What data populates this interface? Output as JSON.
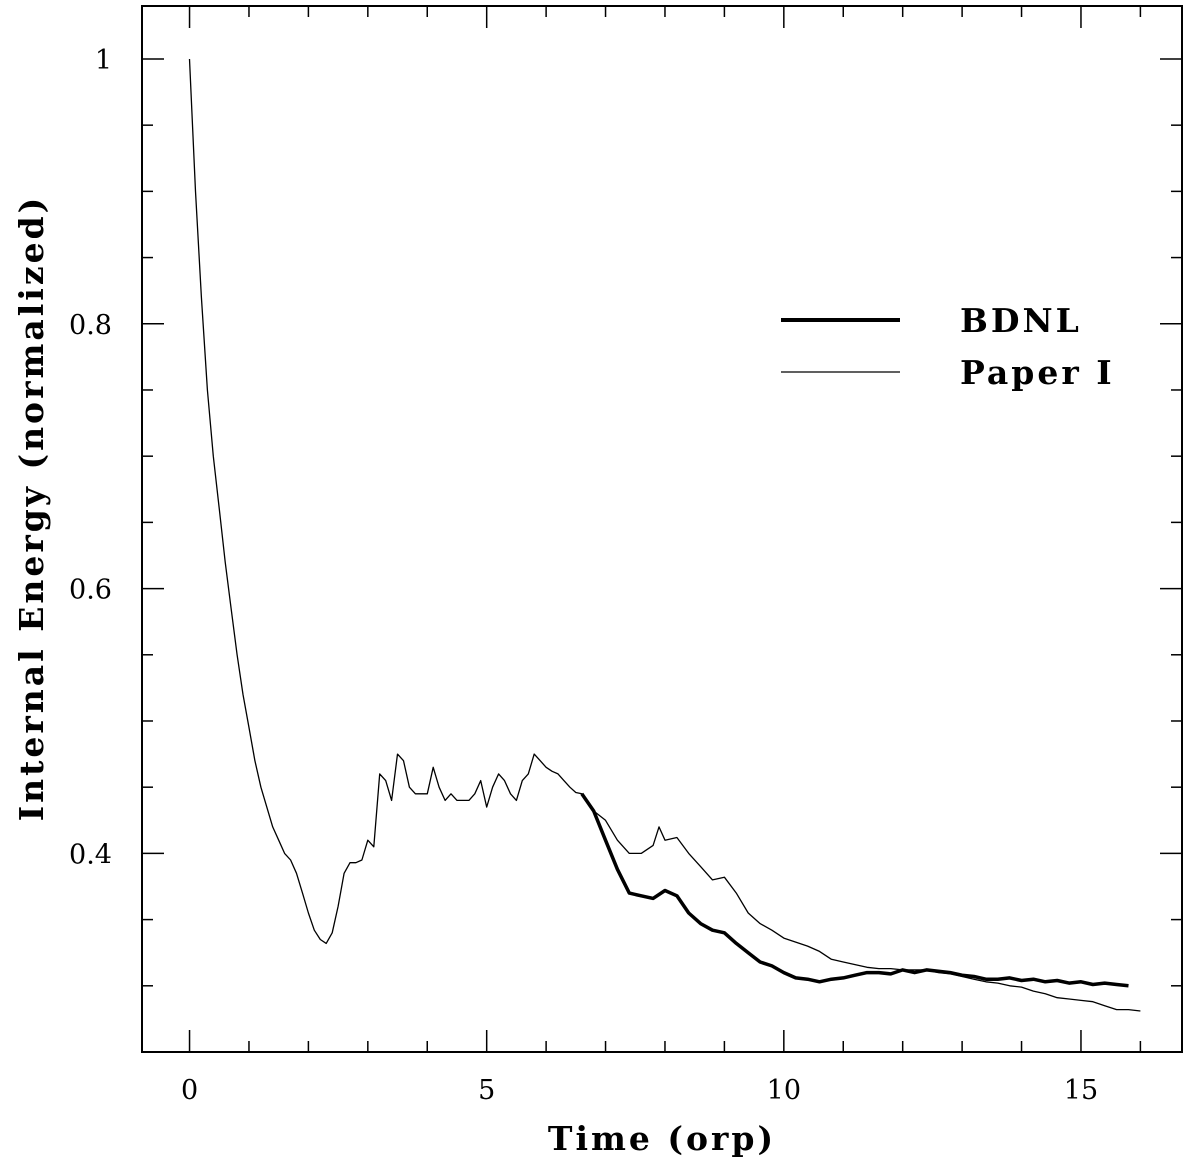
{
  "chart_data": {
    "type": "line",
    "title": "",
    "xlabel": "Time (orp)",
    "ylabel": "Internal Energy (normalized)",
    "xlim": [
      -0.8,
      16.7
    ],
    "ylim": [
      0.25,
      1.04
    ],
    "x_ticks": [
      0,
      5,
      10,
      15
    ],
    "x_tick_labels": [
      "0",
      "5",
      "10",
      "15"
    ],
    "y_ticks": [
      0.4,
      0.6,
      0.8,
      1.0
    ],
    "y_tick_labels": [
      "0.4",
      "0.6",
      "0.8",
      "1"
    ],
    "x_minor_step": 1,
    "y_minor_step": 0.05,
    "grid": false,
    "legend_position": "right",
    "series": [
      {
        "name": "BDNL",
        "style": "thick",
        "color": "#000000",
        "x": [
          6.6,
          6.8,
          7.0,
          7.2,
          7.4,
          7.6,
          7.8,
          8.0,
          8.2,
          8.4,
          8.6,
          8.8,
          9.0,
          9.2,
          9.4,
          9.6,
          9.8,
          10.0,
          10.2,
          10.4,
          10.6,
          10.8,
          11.0,
          11.2,
          11.4,
          11.6,
          11.8,
          12.0,
          12.2,
          12.4,
          12.6,
          12.8,
          13.0,
          13.2,
          13.4,
          13.6,
          13.8,
          14.0,
          14.2,
          14.4,
          14.6,
          14.8,
          15.0,
          15.2,
          15.4,
          15.6,
          15.8
        ],
        "y": [
          0.445,
          0.432,
          0.41,
          0.388,
          0.37,
          0.368,
          0.366,
          0.372,
          0.368,
          0.355,
          0.347,
          0.342,
          0.34,
          0.332,
          0.325,
          0.318,
          0.315,
          0.31,
          0.306,
          0.305,
          0.303,
          0.305,
          0.306,
          0.308,
          0.31,
          0.31,
          0.309,
          0.312,
          0.31,
          0.312,
          0.311,
          0.31,
          0.308,
          0.307,
          0.305,
          0.305,
          0.306,
          0.304,
          0.305,
          0.303,
          0.304,
          0.302,
          0.303,
          0.301,
          0.302,
          0.301,
          0.3
        ]
      },
      {
        "name": "Paper I",
        "style": "thin",
        "color": "#000000",
        "x": [
          0.0,
          0.1,
          0.2,
          0.3,
          0.4,
          0.5,
          0.6,
          0.7,
          0.8,
          0.9,
          1.0,
          1.1,
          1.2,
          1.3,
          1.4,
          1.5,
          1.6,
          1.7,
          1.8,
          1.9,
          2.0,
          2.1,
          2.2,
          2.3,
          2.4,
          2.5,
          2.6,
          2.7,
          2.8,
          2.9,
          3.0,
          3.1,
          3.2,
          3.3,
          3.4,
          3.5,
          3.6,
          3.7,
          3.8,
          3.9,
          4.0,
          4.1,
          4.2,
          4.3,
          4.4,
          4.5,
          4.6,
          4.7,
          4.8,
          4.9,
          5.0,
          5.1,
          5.2,
          5.3,
          5.4,
          5.5,
          5.6,
          5.7,
          5.8,
          5.9,
          6.0,
          6.1,
          6.2,
          6.3,
          6.4,
          6.5,
          6.6,
          6.8,
          7.0,
          7.2,
          7.4,
          7.6,
          7.8,
          7.9,
          8.0,
          8.2,
          8.4,
          8.6,
          8.8,
          9.0,
          9.2,
          9.4,
          9.6,
          9.8,
          10.0,
          10.2,
          10.4,
          10.6,
          10.8,
          11.0,
          11.2,
          11.4,
          11.6,
          11.8,
          12.0,
          12.2,
          12.4,
          12.6,
          12.8,
          13.0,
          13.2,
          13.4,
          13.6,
          13.8,
          14.0,
          14.2,
          14.4,
          14.6,
          14.8,
          15.0,
          15.2,
          15.4,
          15.6,
          15.8,
          16.0
        ],
        "y": [
          1.0,
          0.9,
          0.82,
          0.75,
          0.7,
          0.66,
          0.62,
          0.585,
          0.55,
          0.52,
          0.495,
          0.47,
          0.45,
          0.435,
          0.42,
          0.41,
          0.4,
          0.395,
          0.385,
          0.37,
          0.355,
          0.342,
          0.335,
          0.332,
          0.34,
          0.36,
          0.385,
          0.393,
          0.393,
          0.395,
          0.41,
          0.405,
          0.46,
          0.455,
          0.44,
          0.475,
          0.47,
          0.45,
          0.445,
          0.445,
          0.445,
          0.465,
          0.45,
          0.44,
          0.445,
          0.44,
          0.44,
          0.44,
          0.445,
          0.455,
          0.435,
          0.45,
          0.46,
          0.455,
          0.445,
          0.44,
          0.455,
          0.46,
          0.475,
          0.47,
          0.465,
          0.462,
          0.46,
          0.455,
          0.45,
          0.446,
          0.445,
          0.432,
          0.425,
          0.41,
          0.4,
          0.4,
          0.406,
          0.42,
          0.41,
          0.412,
          0.4,
          0.39,
          0.38,
          0.382,
          0.37,
          0.355,
          0.347,
          0.342,
          0.336,
          0.333,
          0.33,
          0.326,
          0.32,
          0.318,
          0.316,
          0.314,
          0.313,
          0.313,
          0.312,
          0.312,
          0.312,
          0.31,
          0.309,
          0.307,
          0.305,
          0.303,
          0.302,
          0.3,
          0.299,
          0.296,
          0.294,
          0.291,
          0.29,
          0.289,
          0.288,
          0.285,
          0.282,
          0.282,
          0.281
        ]
      }
    ]
  }
}
